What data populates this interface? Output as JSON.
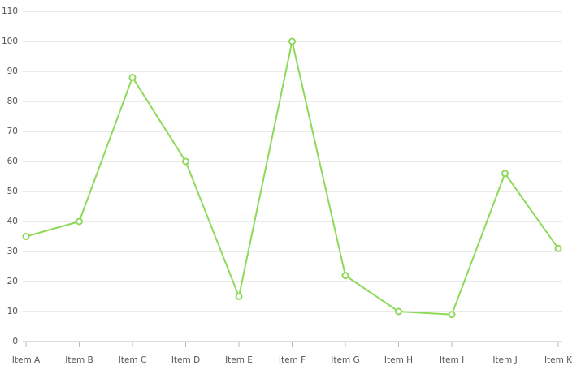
{
  "chart_data": {
    "type": "line",
    "categories": [
      "Item A",
      "Item B",
      "Item C",
      "Item D",
      "Item E",
      "Item F",
      "Item G",
      "Item H",
      "Item I",
      "Item J",
      "Item K"
    ],
    "values": [
      35,
      40,
      88,
      60,
      15,
      100,
      22,
      10,
      9,
      56,
      31
    ],
    "color": "#8ed95a",
    "ylim": [
      0,
      110
    ],
    "yticks": [
      0,
      10,
      20,
      30,
      40,
      50,
      60,
      70,
      80,
      90,
      100,
      110
    ],
    "grid": true
  }
}
